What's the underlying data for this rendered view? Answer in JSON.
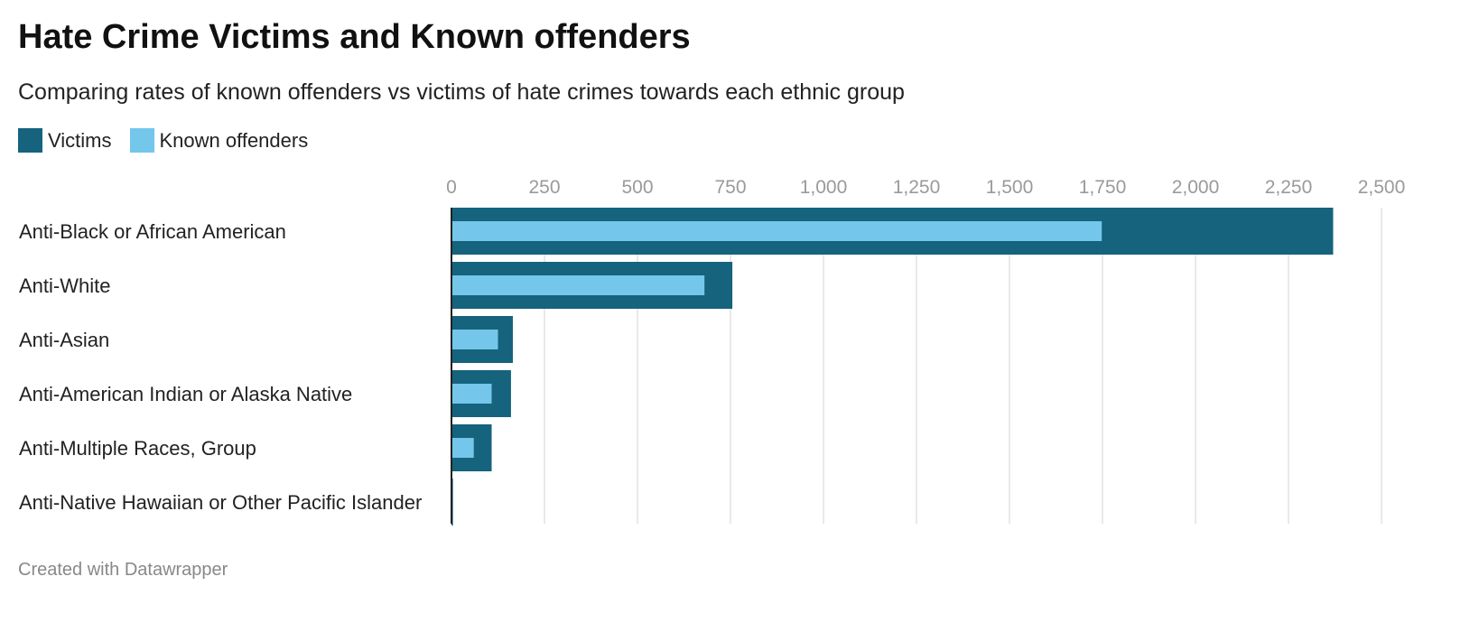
{
  "title": "Hate Crime Victims and Known offenders",
  "subtitle": "Comparing rates of known offenders vs victims of hate crimes towards each ethnic group",
  "footer": "Created with Datawrapper",
  "colors": {
    "victims": "#15637d",
    "offenders": "#74c6ea",
    "grid": "#e2e2e2",
    "tick_label": "#9a9a9a",
    "axis_line": "#222222"
  },
  "chart_data": {
    "type": "bar",
    "orientation": "horizontal",
    "title": "Hate Crime Victims and Known offenders",
    "subtitle": "Comparing rates of known offenders vs victims of hate crimes towards each ethnic group",
    "categories": [
      "Anti-Black or African American",
      "Anti-White",
      "Anti-Asian",
      "Anti-American Indian or Alaska Native",
      "Anti-Multiple Races, Group",
      "Anti-Native Hawaiian or Other Pacific Islander"
    ],
    "series": [
      {
        "name": "Victims",
        "values": [
          2370,
          755,
          165,
          160,
          108,
          4
        ]
      },
      {
        "name": "Known offenders",
        "values": [
          1748,
          680,
          125,
          108,
          60,
          2
        ]
      }
    ],
    "x_ticks": [
      "0",
      "250",
      "500",
      "750",
      "1,000",
      "1,250",
      "1,500",
      "1,750",
      "2,000",
      "2,250",
      "2,500"
    ],
    "xlim": [
      0,
      2500
    ],
    "grid": true,
    "legend_position": "top-left"
  }
}
